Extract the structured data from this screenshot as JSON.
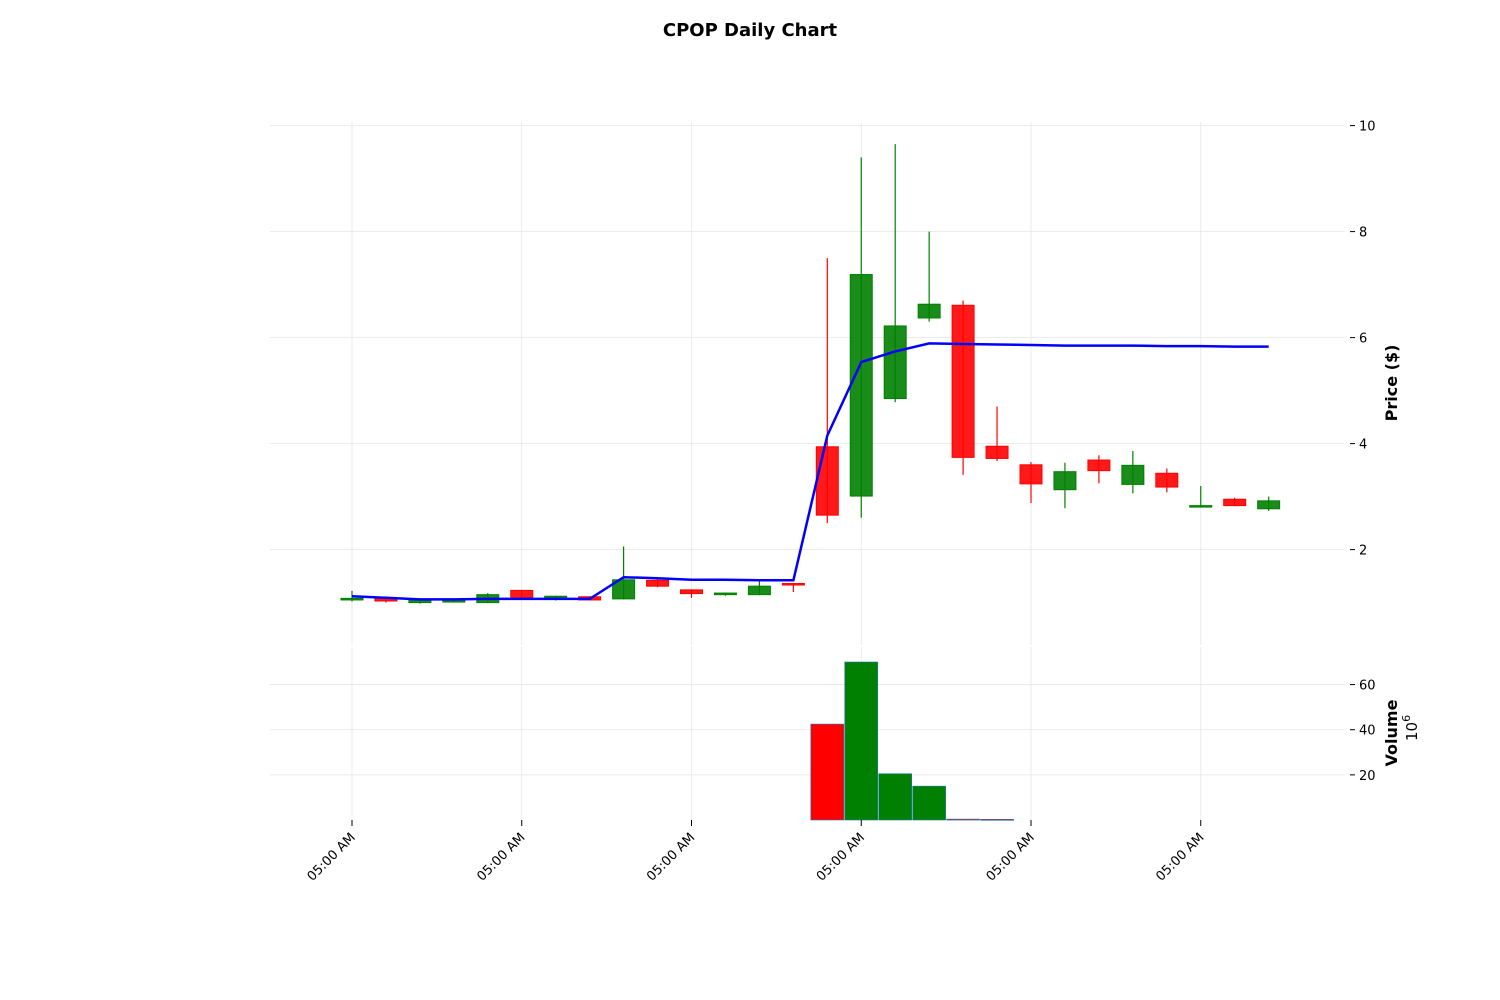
{
  "chart_data": {
    "type": "candlestick",
    "title": "CPOP Daily Chart",
    "price_panel": {
      "ylabel": "Price ($)",
      "ylim": [
        0.2,
        10.2
      ],
      "yticks": [
        2,
        4,
        6,
        8,
        10
      ],
      "grid": true
    },
    "volume_panel": {
      "ylabel": "Volume",
      "scale_label": "10",
      "scale_exponent": "6",
      "ylim": [
        0,
        70
      ],
      "yticks": [
        20,
        40,
        60
      ],
      "grid": true
    },
    "x_tick_labels": [
      "05:00 AM",
      "05:00 AM",
      "05:00 AM",
      "05:00 AM",
      "05:00 AM",
      "05:00 AM"
    ],
    "x_tick_positions": [
      0,
      5,
      10,
      15,
      20,
      25
    ],
    "colors": {
      "up": "#008000",
      "down": "#ff0000",
      "average_line": "#0000ff"
    },
    "candles": [
      {
        "open": 1.05,
        "high": 1.22,
        "low": 1.02,
        "close": 1.08
      },
      {
        "open": 1.08,
        "high": 1.1,
        "low": 1.0,
        "close": 1.03
      },
      {
        "open": 1.0,
        "high": 1.06,
        "low": 0.98,
        "close": 1.05
      },
      {
        "open": 1.01,
        "high": 1.08,
        "low": 1.0,
        "close": 1.05
      },
      {
        "open": 1.0,
        "high": 1.18,
        "low": 0.99,
        "close": 1.15
      },
      {
        "open": 1.23,
        "high": 1.24,
        "low": 1.05,
        "close": 1.06
      },
      {
        "open": 1.06,
        "high": 1.13,
        "low": 1.04,
        "close": 1.12
      },
      {
        "open": 1.11,
        "high": 1.12,
        "low": 1.04,
        "close": 1.05
      },
      {
        "open": 1.07,
        "high": 2.06,
        "low": 1.06,
        "close": 1.43
      },
      {
        "open": 1.42,
        "high": 1.45,
        "low": 1.29,
        "close": 1.31
      },
      {
        "open": 1.24,
        "high": 1.25,
        "low": 1.09,
        "close": 1.17
      },
      {
        "open": 1.15,
        "high": 1.19,
        "low": 1.13,
        "close": 1.18
      },
      {
        "open": 1.15,
        "high": 1.44,
        "low": 1.14,
        "close": 1.31
      },
      {
        "open": 1.36,
        "high": 1.36,
        "low": 1.2,
        "close": 1.35
      },
      {
        "open": 3.94,
        "high": 7.5,
        "low": 2.5,
        "close": 2.65
      },
      {
        "open": 3.01,
        "high": 9.4,
        "low": 2.6,
        "close": 7.19
      },
      {
        "open": 4.85,
        "high": 9.65,
        "low": 4.78,
        "close": 6.22
      },
      {
        "open": 6.37,
        "high": 8.0,
        "low": 6.3,
        "close": 6.63
      },
      {
        "open": 6.61,
        "high": 6.7,
        "low": 3.41,
        "close": 3.74
      },
      {
        "open": 3.95,
        "high": 4.7,
        "low": 3.67,
        "close": 3.72
      },
      {
        "open": 3.6,
        "high": 3.65,
        "low": 2.88,
        "close": 3.24
      },
      {
        "open": 3.13,
        "high": 3.64,
        "low": 2.78,
        "close": 3.47
      },
      {
        "open": 3.69,
        "high": 3.78,
        "low": 3.25,
        "close": 3.49
      },
      {
        "open": 3.23,
        "high": 3.86,
        "low": 3.06,
        "close": 3.59
      },
      {
        "open": 3.44,
        "high": 3.53,
        "low": 3.08,
        "close": 3.18
      },
      {
        "open": 2.82,
        "high": 3.2,
        "low": 2.8,
        "close": 2.83
      },
      {
        "open": 2.95,
        "high": 2.98,
        "low": 2.82,
        "close": 2.83
      },
      {
        "open": 2.77,
        "high": 3.0,
        "low": 2.73,
        "close": 2.92
      }
    ],
    "average_line": [
      1.12,
      1.09,
      1.06,
      1.06,
      1.07,
      1.07,
      1.07,
      1.07,
      1.48,
      1.46,
      1.43,
      1.43,
      1.42,
      1.42,
      4.15,
      5.54,
      5.74,
      5.89,
      5.88,
      5.87,
      5.86,
      5.85,
      5.85,
      5.85,
      5.84,
      5.84,
      5.83,
      5.83
    ],
    "volume": [
      {
        "index": 14,
        "value": 42.5,
        "direction": "down"
      },
      {
        "index": 15,
        "value": 70.0,
        "direction": "up"
      },
      {
        "index": 16,
        "value": 20.5,
        "direction": "up"
      },
      {
        "index": 17,
        "value": 15.0,
        "direction": "up"
      },
      {
        "index": 18,
        "value": 0.4,
        "direction": "down"
      },
      {
        "index": 19,
        "value": 0.3,
        "direction": "down"
      }
    ]
  }
}
